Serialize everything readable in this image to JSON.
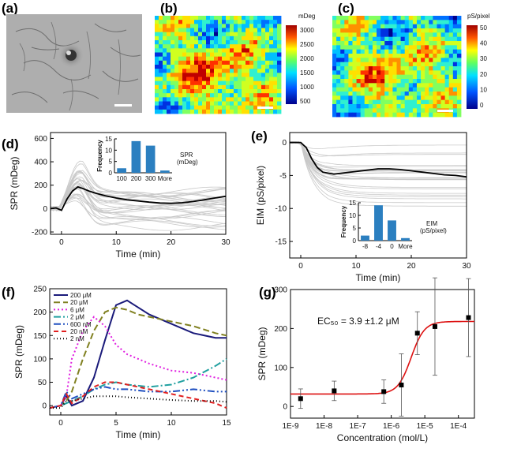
{
  "panel_labels": [
    "(a)",
    "(b)",
    "(c)",
    "(d)",
    "(e)",
    "(f)",
    "(g)"
  ],
  "colorbars": [
    {
      "unit": "mDeg",
      "ticks": [
        "3000",
        "2500",
        "2000",
        "1500",
        "1000",
        "500"
      ]
    },
    {
      "unit": "pS/pixel",
      "ticks": [
        "50",
        "40",
        "30",
        "20",
        "10",
        "0"
      ]
    }
  ],
  "chart_data": [
    {
      "id": "d",
      "type": "line",
      "xlabel": "Time (min)",
      "ylabel": "SPR (mDeg)",
      "xlim": [
        -2,
        30
      ],
      "ylim": [
        -220,
        650
      ],
      "xticks": [
        0,
        10,
        20,
        30
      ],
      "yticks": [
        -200,
        0,
        200,
        400,
        600
      ],
      "series": [
        {
          "role": "mean",
          "x": [
            -2,
            -1,
            0,
            1,
            2,
            3,
            4,
            5,
            6,
            8,
            10,
            12,
            14,
            16,
            18,
            20,
            22,
            24,
            26,
            28,
            30
          ],
          "values": [
            0,
            5,
            -15,
            80,
            150,
            185,
            170,
            150,
            135,
            110,
            90,
            75,
            65,
            55,
            48,
            45,
            50,
            60,
            75,
            90,
            105
          ]
        }
      ],
      "inset": {
        "type": "bar",
        "xlabel": "SPR (mDeg)",
        "ylabel": "Frequency",
        "categories": [
          "100",
          "200",
          "300",
          "More"
        ],
        "values": [
          2,
          14,
          12,
          1
        ],
        "ylim": [
          0,
          15
        ],
        "yticks": [
          0,
          5,
          10,
          15
        ]
      }
    },
    {
      "id": "e",
      "type": "line",
      "xlabel": "Time (min)",
      "ylabel": "EIM (pS/pixel)",
      "xlim": [
        -2,
        30
      ],
      "ylim": [
        -17.5,
        1.5
      ],
      "xticks": [
        0,
        10,
        20,
        30
      ],
      "yticks": [
        0,
        -5,
        -10,
        -15
      ],
      "series": [
        {
          "role": "mean",
          "x": [
            -2,
            -1,
            0,
            1,
            2,
            3,
            4,
            6,
            8,
            10,
            12,
            14,
            16,
            18,
            20,
            22,
            24,
            26,
            28,
            30
          ],
          "values": [
            0,
            0,
            0,
            -0.8,
            -2.5,
            -3.8,
            -4.5,
            -4.8,
            -4.6,
            -4.4,
            -4.2,
            -4.0,
            -4.0,
            -4.1,
            -4.3,
            -4.5,
            -4.7,
            -4.9,
            -5.0,
            -5.2
          ]
        }
      ],
      "inset": {
        "type": "bar",
        "xlabel": "EIM (pS/pixel)",
        "ylabel": "Frequency",
        "categories": [
          "-8",
          "-4",
          "0",
          "More"
        ],
        "values": [
          2,
          14,
          8,
          1
        ],
        "ylim": [
          0,
          15
        ],
        "yticks": [
          0,
          5,
          10,
          15
        ]
      }
    },
    {
      "id": "f",
      "type": "line",
      "xlabel": "Time (min)",
      "ylabel": "SPR (mDeg)",
      "xlim": [
        -1,
        15
      ],
      "ylim": [
        -20,
        250
      ],
      "xticks": [
        0,
        5,
        10,
        15
      ],
      "yticks": [
        0,
        50,
        100,
        150,
        200,
        250
      ],
      "legend_position": "top-left",
      "series": [
        {
          "name": "200 μM",
          "color": "#1a1a7a",
          "dash": "solid",
          "x": [
            -1,
            0,
            0.5,
            1,
            2,
            3,
            4,
            5,
            6,
            7,
            8,
            10,
            12,
            14,
            15
          ],
          "values": [
            -5,
            0,
            20,
            0,
            10,
            60,
            140,
            215,
            225,
            210,
            195,
            175,
            155,
            145,
            145
          ]
        },
        {
          "name": "20 μM",
          "color": "#808020",
          "dash": "8,4",
          "x": [
            -1,
            0,
            0.5,
            1,
            2,
            3,
            4,
            5,
            6,
            7,
            8,
            10,
            12,
            14,
            15
          ],
          "values": [
            -5,
            0,
            10,
            30,
            100,
            160,
            200,
            210,
            205,
            195,
            190,
            180,
            170,
            155,
            150
          ]
        },
        {
          "name": "6 μM",
          "color": "#e020e0",
          "dash": "2,3",
          "x": [
            -1,
            0,
            0.5,
            1,
            2,
            3,
            4,
            5,
            6,
            8,
            10,
            12,
            14,
            15
          ],
          "values": [
            -5,
            0,
            20,
            100,
            160,
            190,
            170,
            130,
            110,
            90,
            75,
            70,
            60,
            55
          ]
        },
        {
          "name": "2 μM",
          "color": "#20a0a0",
          "dash": "9,3,2,3",
          "x": [
            -1,
            0,
            0.5,
            1,
            2,
            3,
            4,
            5,
            6,
            8,
            10,
            12,
            14,
            15
          ],
          "values": [
            -5,
            0,
            5,
            10,
            20,
            35,
            45,
            50,
            45,
            40,
            45,
            60,
            85,
            100
          ]
        },
        {
          "name": "600 nM",
          "color": "#2050c0",
          "dash": "9,3,2,3,2,3",
          "x": [
            -1,
            0,
            0.5,
            1,
            2,
            3,
            4,
            5,
            6,
            8,
            10,
            12,
            14,
            15
          ],
          "values": [
            -5,
            0,
            30,
            15,
            25,
            35,
            40,
            35,
            35,
            30,
            30,
            35,
            30,
            30
          ]
        },
        {
          "name": "20 nM",
          "color": "#e02020",
          "dash": "6,4",
          "x": [
            -1,
            0,
            0.5,
            1,
            2,
            3,
            4,
            5,
            6,
            8,
            10,
            12,
            14,
            15
          ],
          "values": [
            -5,
            0,
            25,
            5,
            20,
            40,
            50,
            50,
            45,
            35,
            25,
            15,
            5,
            -5
          ]
        },
        {
          "name": "2 nM",
          "color": "#000000",
          "dash": "1,3",
          "x": [
            -1,
            0,
            0.5,
            1,
            2,
            3,
            4,
            5,
            6,
            8,
            10,
            12,
            14,
            15
          ],
          "values": [
            -5,
            -5,
            10,
            10,
            15,
            20,
            20,
            20,
            18,
            15,
            12,
            10,
            10,
            8
          ]
        }
      ]
    },
    {
      "id": "g",
      "type": "scatter",
      "xlabel": "Concentration (mol/L)",
      "ylabel": "SPR (mDeg)",
      "xscale": "log",
      "xlim": [
        1e-09,
        0.0003
      ],
      "ylim": [
        -30,
        300
      ],
      "xticks": [
        "1E-9",
        "1E-8",
        "1E-7",
        "1E-6",
        "1E-5",
        "1E-4"
      ],
      "yticks": [
        0,
        100,
        200,
        300
      ],
      "annotation": "EC₅₀ = 3.9 ±1.2 μM",
      "points": [
        {
          "x": 2e-09,
          "y": 20,
          "err": 25
        },
        {
          "x": 2e-08,
          "y": 40,
          "err": 25
        },
        {
          "x": 6e-07,
          "y": 38,
          "err": 30
        },
        {
          "x": 2e-06,
          "y": 55,
          "err": 80
        },
        {
          "x": 6e-06,
          "y": 188,
          "err": 55
        },
        {
          "x": 2e-05,
          "y": 205,
          "err": 125
        },
        {
          "x": 0.0002,
          "y": 228,
          "err": 100
        }
      ],
      "fit": {
        "color": "#dd1111",
        "bottom": 32,
        "top": 218,
        "ec50": 3.9e-06,
        "hill": 2.2
      }
    }
  ]
}
